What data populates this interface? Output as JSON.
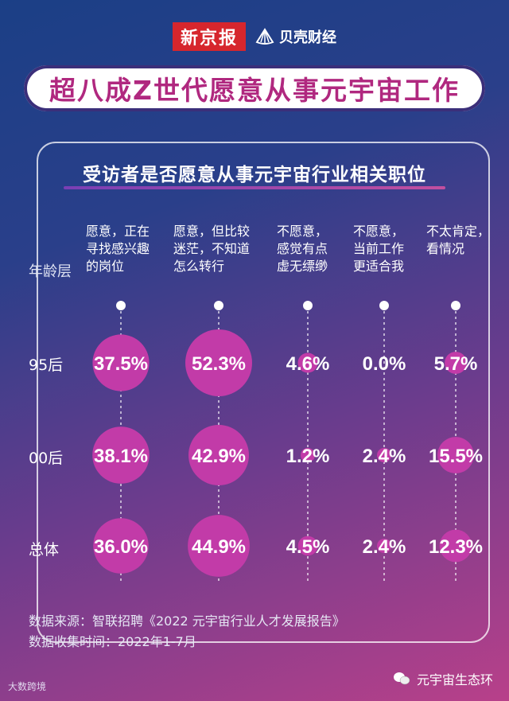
{
  "brand": {
    "left": "新京报",
    "right": "贝壳财经"
  },
  "title": "超八成Z世代愿意从事元宇宙工作",
  "panel_title": "受访者是否愿意从事元宇宙行业相关职位",
  "chart_data": {
    "type": "table",
    "row_header": "年龄层",
    "columns": [
      "愿意，正在\n寻找感兴趣\n的岗位",
      "愿意，但比较\n迷茫，不知道\n怎么转行",
      "不愿意，\n感觉有点\n虚无缥缈",
      "不愿意，\n当前工作\n更适合我",
      "不太肯定，\n看情况"
    ],
    "rows": [
      {
        "label": "95后",
        "values": [
          "37.5%",
          "52.3%",
          "4.6%",
          "0.0%",
          "5.7%"
        ]
      },
      {
        "label": "00后",
        "values": [
          "38.1%",
          "42.9%",
          "1.2%",
          "2.4%",
          "15.5%"
        ]
      },
      {
        "label": "总体",
        "values": [
          "36.0%",
          "44.9%",
          "4.5%",
          "2.4%",
          "12.3%"
        ]
      }
    ],
    "bubble_color": "#c23ba8"
  },
  "footer": {
    "source": "数据来源：智联招聘《2022 元宇宙行业人才发展报告》",
    "time": "数据收集时间：2022年1-7月"
  },
  "watermark_left": "大数跨境",
  "watermark_right": "元宇宙生态环"
}
